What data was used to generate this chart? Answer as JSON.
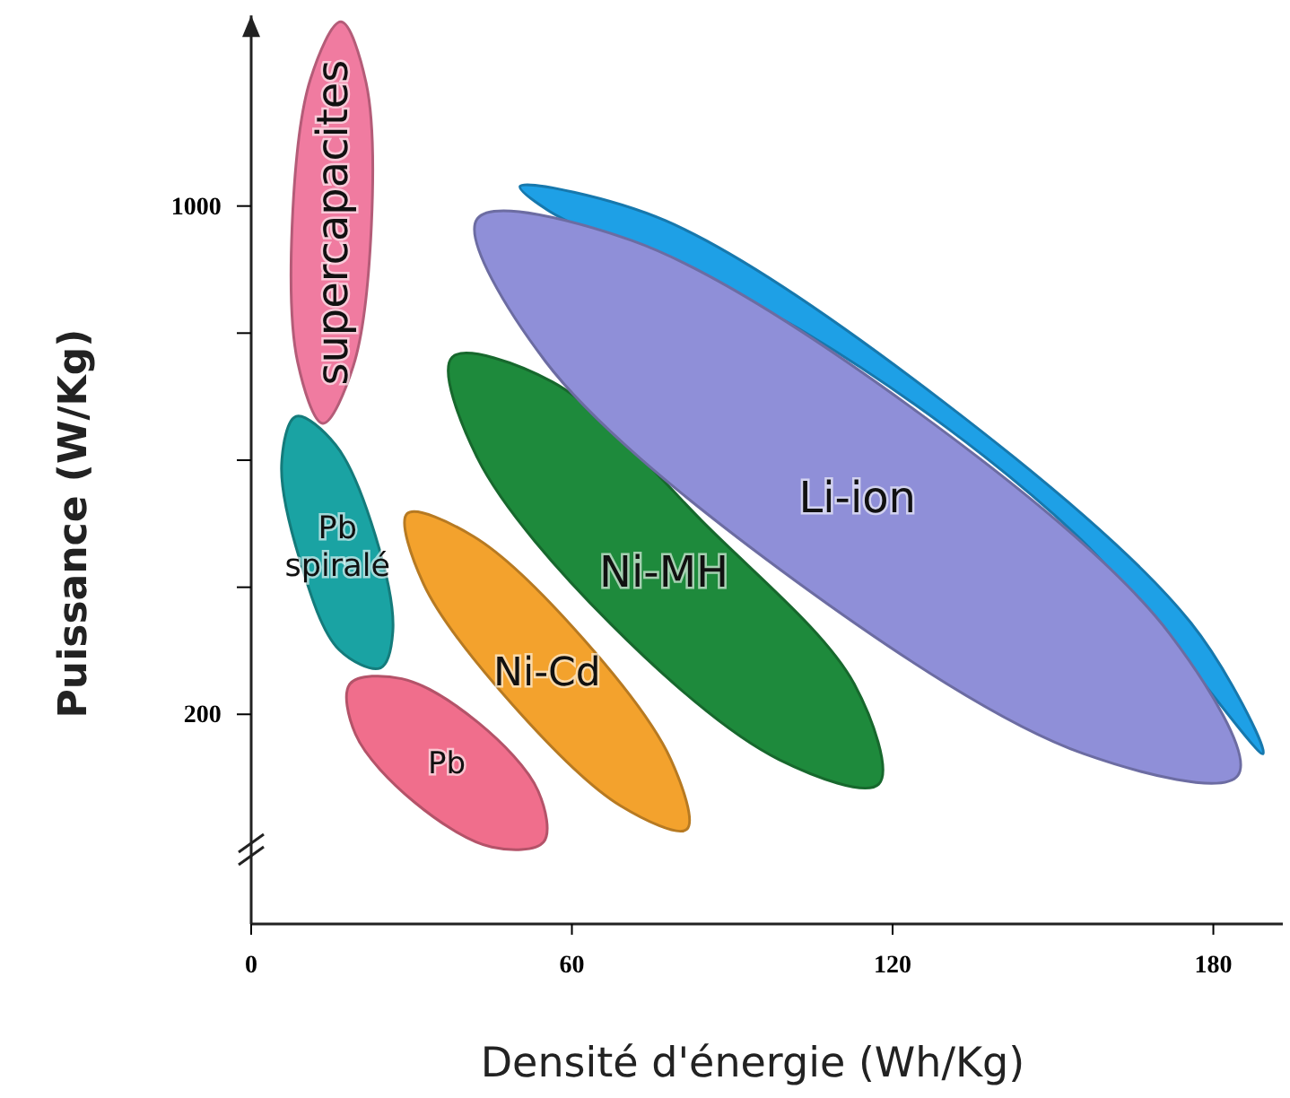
{
  "chart_data": {
    "type": "area",
    "xlabel": "Densité d'énergie (Wh/Kg)",
    "ylabel": "Puissance (W/Kg)",
    "xlim": [
      0,
      193
    ],
    "ylim": [
      -130,
      1300
    ],
    "xticks": [
      0,
      60,
      120,
      180
    ],
    "yticks": [
      200,
      {
        "value": 400,
        "label": null
      },
      {
        "value": 600,
        "label": null
      },
      {
        "value": 800,
        "label": null
      },
      1000
    ],
    "series": [
      {
        "name": "supercapacites",
        "color": "#f07ba0",
        "x": [
          16.8,
          21.5,
          22.5,
          19.1,
          13.4,
          8.7,
          7.7,
          11.1
        ],
        "values": [
          1290,
          1194,
          971,
          748,
          658,
          754,
          977,
          1200
        ]
      },
      {
        "name": "Pb spiralé",
        "color": "#1aa3a3",
        "x": [
          8.4,
          15.8,
          23.2,
          26.5,
          24.2,
          16.4,
          9.1,
          5.7
        ],
        "values": [
          669,
          624,
          482,
          330,
          273,
          302,
          443,
          595
        ]
      },
      {
        "name": "Pb",
        "color": "#f06e8c",
        "x": [
          54.7,
          53.7,
          42.6,
          28.2,
          18.5,
          19.5,
          30.5,
          45
        ],
        "values": [
          -1,
          79,
          186,
          256,
          248,
          169,
          62,
          -9
        ]
      },
      {
        "name": "Ni-Cd",
        "color": "#f3a22d",
        "x": [
          81.5,
          78.5,
          62.1,
          41.6,
          29.2,
          32.2,
          48.7,
          69.1
        ],
        "values": [
          19,
          129,
          319,
          480,
          516,
          406,
          217,
          56
        ]
      },
      {
        "name": "Ni-MH",
        "color": "#1e8a3c",
        "x": [
          117.4,
          112.8,
          85.2,
          56.4,
          37.6,
          42.3,
          67.4,
          98.7
        ],
        "values": [
          90,
          248,
          497,
          723,
          762,
          604,
          341,
          129
        ]
      },
      {
        "color": "#1ea0e6",
        "x": [
          189.3,
          175.8,
          129.5,
          77.5,
          50.3,
          55.4,
          104,
          154.4
        ],
        "values": [
          138,
          344,
          692,
          977,
          1031,
          994,
          799,
          482
        ]
      },
      {
        "name": "Li-ion",
        "color": "#8f8fd8",
        "x": [
          184.6,
          171.8,
          124.8,
          71.1,
          42.3,
          55,
          102,
          155.7
        ],
        "values": [
          104,
          327,
          675,
          946,
          980,
          756,
          409,
          138
        ]
      }
    ]
  }
}
